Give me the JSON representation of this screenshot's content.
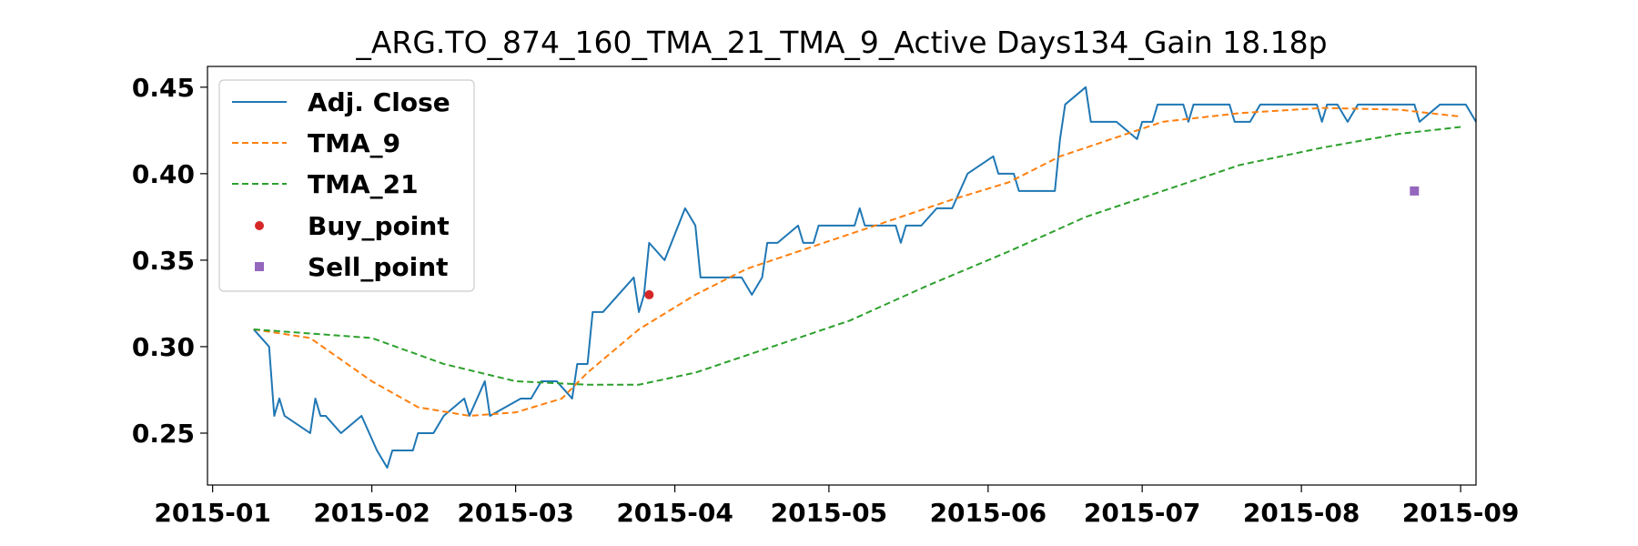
{
  "chart_data": {
    "type": "line",
    "title": "_ARG.TO_874_160_TMA_21_TMA_9_Active Days134_Gain  18.18p",
    "xlabel": "",
    "ylabel": "",
    "xlim": [
      "2014-12-31",
      "2015-09-04"
    ],
    "ylim": [
      0.22,
      0.462
    ],
    "grid": false,
    "legend_position": "top-left",
    "x_ticks": [
      "2015-01",
      "2015-02",
      "2015-03",
      "2015-04",
      "2015-05",
      "2015-06",
      "2015-07",
      "2015-08",
      "2015-09"
    ],
    "y_ticks": [
      "0.25",
      "0.30",
      "0.35",
      "0.40",
      "0.45"
    ],
    "series": [
      {
        "name": "Adj. Close",
        "style": "solid",
        "color": "#1f77b4",
        "points": [
          [
            "2015-01-09",
            0.31
          ],
          [
            "2015-01-12",
            0.3
          ],
          [
            "2015-01-13",
            0.26
          ],
          [
            "2015-01-14",
            0.27
          ],
          [
            "2015-01-15",
            0.26
          ],
          [
            "2015-01-20",
            0.25
          ],
          [
            "2015-01-21",
            0.27
          ],
          [
            "2015-01-22",
            0.26
          ],
          [
            "2015-01-23",
            0.26
          ],
          [
            "2015-01-26",
            0.25
          ],
          [
            "2015-01-30",
            0.26
          ],
          [
            "2015-02-02",
            0.24
          ],
          [
            "2015-02-04",
            0.23
          ],
          [
            "2015-02-05",
            0.24
          ],
          [
            "2015-02-09",
            0.24
          ],
          [
            "2015-02-10",
            0.25
          ],
          [
            "2015-02-13",
            0.25
          ],
          [
            "2015-02-15",
            0.26
          ],
          [
            "2015-02-19",
            0.27
          ],
          [
            "2015-02-20",
            0.26
          ],
          [
            "2015-02-23",
            0.28
          ],
          [
            "2015-02-24",
            0.26
          ],
          [
            "2015-03-02",
            0.27
          ],
          [
            "2015-03-04",
            0.27
          ],
          [
            "2015-03-06",
            0.28
          ],
          [
            "2015-03-09",
            0.28
          ],
          [
            "2015-03-12",
            0.27
          ],
          [
            "2015-03-13",
            0.29
          ],
          [
            "2015-03-15",
            0.29
          ],
          [
            "2015-03-16",
            0.32
          ],
          [
            "2015-03-18",
            0.32
          ],
          [
            "2015-03-24",
            0.34
          ],
          [
            "2015-03-25",
            0.32
          ],
          [
            "2015-03-26",
            0.33
          ],
          [
            "2015-03-27",
            0.36
          ],
          [
            "2015-03-30",
            0.35
          ],
          [
            "2015-04-03",
            0.38
          ],
          [
            "2015-04-05",
            0.37
          ],
          [
            "2015-04-06",
            0.34
          ],
          [
            "2015-04-14",
            0.34
          ],
          [
            "2015-04-16",
            0.33
          ],
          [
            "2015-04-18",
            0.34
          ],
          [
            "2015-04-19",
            0.36
          ],
          [
            "2015-04-21",
            0.36
          ],
          [
            "2015-04-25",
            0.37
          ],
          [
            "2015-04-26",
            0.36
          ],
          [
            "2015-04-28",
            0.36
          ],
          [
            "2015-04-29",
            0.37
          ],
          [
            "2015-05-06",
            0.37
          ],
          [
            "2015-05-07",
            0.38
          ],
          [
            "2015-05-08",
            0.37
          ],
          [
            "2015-05-14",
            0.37
          ],
          [
            "2015-05-15",
            0.36
          ],
          [
            "2015-05-16",
            0.37
          ],
          [
            "2015-05-19",
            0.37
          ],
          [
            "2015-05-22",
            0.38
          ],
          [
            "2015-05-25",
            0.38
          ],
          [
            "2015-05-28",
            0.4
          ],
          [
            "2015-06-02",
            0.41
          ],
          [
            "2015-06-03",
            0.4
          ],
          [
            "2015-06-06",
            0.4
          ],
          [
            "2015-06-07",
            0.39
          ],
          [
            "2015-06-14",
            0.39
          ],
          [
            "2015-06-15",
            0.42
          ],
          [
            "2015-06-16",
            0.44
          ],
          [
            "2015-06-20",
            0.45
          ],
          [
            "2015-06-21",
            0.43
          ],
          [
            "2015-06-26",
            0.43
          ],
          [
            "2015-06-30",
            0.42
          ],
          [
            "2015-07-01",
            0.43
          ],
          [
            "2015-07-03",
            0.43
          ],
          [
            "2015-07-04",
            0.44
          ],
          [
            "2015-07-09",
            0.44
          ],
          [
            "2015-07-10",
            0.43
          ],
          [
            "2015-07-11",
            0.44
          ],
          [
            "2015-07-18",
            0.44
          ],
          [
            "2015-07-19",
            0.43
          ],
          [
            "2015-07-22",
            0.43
          ],
          [
            "2015-07-24",
            0.44
          ],
          [
            "2015-07-29",
            0.44
          ],
          [
            "2015-08-04",
            0.44
          ],
          [
            "2015-08-05",
            0.43
          ],
          [
            "2015-08-06",
            0.44
          ],
          [
            "2015-08-08",
            0.44
          ],
          [
            "2015-08-10",
            0.43
          ],
          [
            "2015-08-12",
            0.44
          ],
          [
            "2015-08-23",
            0.44
          ],
          [
            "2015-08-24",
            0.43
          ],
          [
            "2015-08-28",
            0.44
          ],
          [
            "2015-09-02",
            0.44
          ],
          [
            "2015-09-04",
            0.43
          ]
        ]
      },
      {
        "name": "TMA_9",
        "style": "dashed",
        "color": "#ff7f0e",
        "points": [
          [
            "2015-01-09",
            0.31
          ],
          [
            "2015-01-20",
            0.305
          ],
          [
            "2015-02-01",
            0.28
          ],
          [
            "2015-02-10",
            0.265
          ],
          [
            "2015-02-20",
            0.26
          ],
          [
            "2015-03-01",
            0.262
          ],
          [
            "2015-03-10",
            0.27
          ],
          [
            "2015-03-15",
            0.285
          ],
          [
            "2015-03-25",
            0.31
          ],
          [
            "2015-04-05",
            0.33
          ],
          [
            "2015-04-15",
            0.345
          ],
          [
            "2015-04-25",
            0.355
          ],
          [
            "2015-05-05",
            0.365
          ],
          [
            "2015-05-15",
            0.375
          ],
          [
            "2015-05-25",
            0.385
          ],
          [
            "2015-06-05",
            0.395
          ],
          [
            "2015-06-15",
            0.41
          ],
          [
            "2015-06-25",
            0.42
          ],
          [
            "2015-07-05",
            0.43
          ],
          [
            "2015-07-20",
            0.435
          ],
          [
            "2015-08-05",
            0.438
          ],
          [
            "2015-08-20",
            0.437
          ],
          [
            "2015-09-01",
            0.433
          ]
        ]
      },
      {
        "name": "TMA_21",
        "style": "dashed",
        "color": "#2ca02c",
        "points": [
          [
            "2015-01-09",
            0.31
          ],
          [
            "2015-02-01",
            0.305
          ],
          [
            "2015-02-15",
            0.29
          ],
          [
            "2015-03-01",
            0.28
          ],
          [
            "2015-03-15",
            0.278
          ],
          [
            "2015-03-25",
            0.278
          ],
          [
            "2015-04-05",
            0.285
          ],
          [
            "2015-04-20",
            0.3
          ],
          [
            "2015-05-05",
            0.315
          ],
          [
            "2015-05-20",
            0.335
          ],
          [
            "2015-06-05",
            0.355
          ],
          [
            "2015-06-20",
            0.375
          ],
          [
            "2015-07-05",
            0.39
          ],
          [
            "2015-07-20",
            0.405
          ],
          [
            "2015-08-05",
            0.415
          ],
          [
            "2015-08-20",
            0.423
          ],
          [
            "2015-09-01",
            0.427
          ]
        ]
      }
    ],
    "markers": [
      {
        "name": "Buy_point",
        "shape": "circle",
        "color": "#d62728",
        "x": "2015-03-27",
        "y": 0.33
      },
      {
        "name": "Sell_point",
        "shape": "square",
        "color": "#9467bd",
        "x": "2015-08-23",
        "y": 0.39
      }
    ]
  }
}
